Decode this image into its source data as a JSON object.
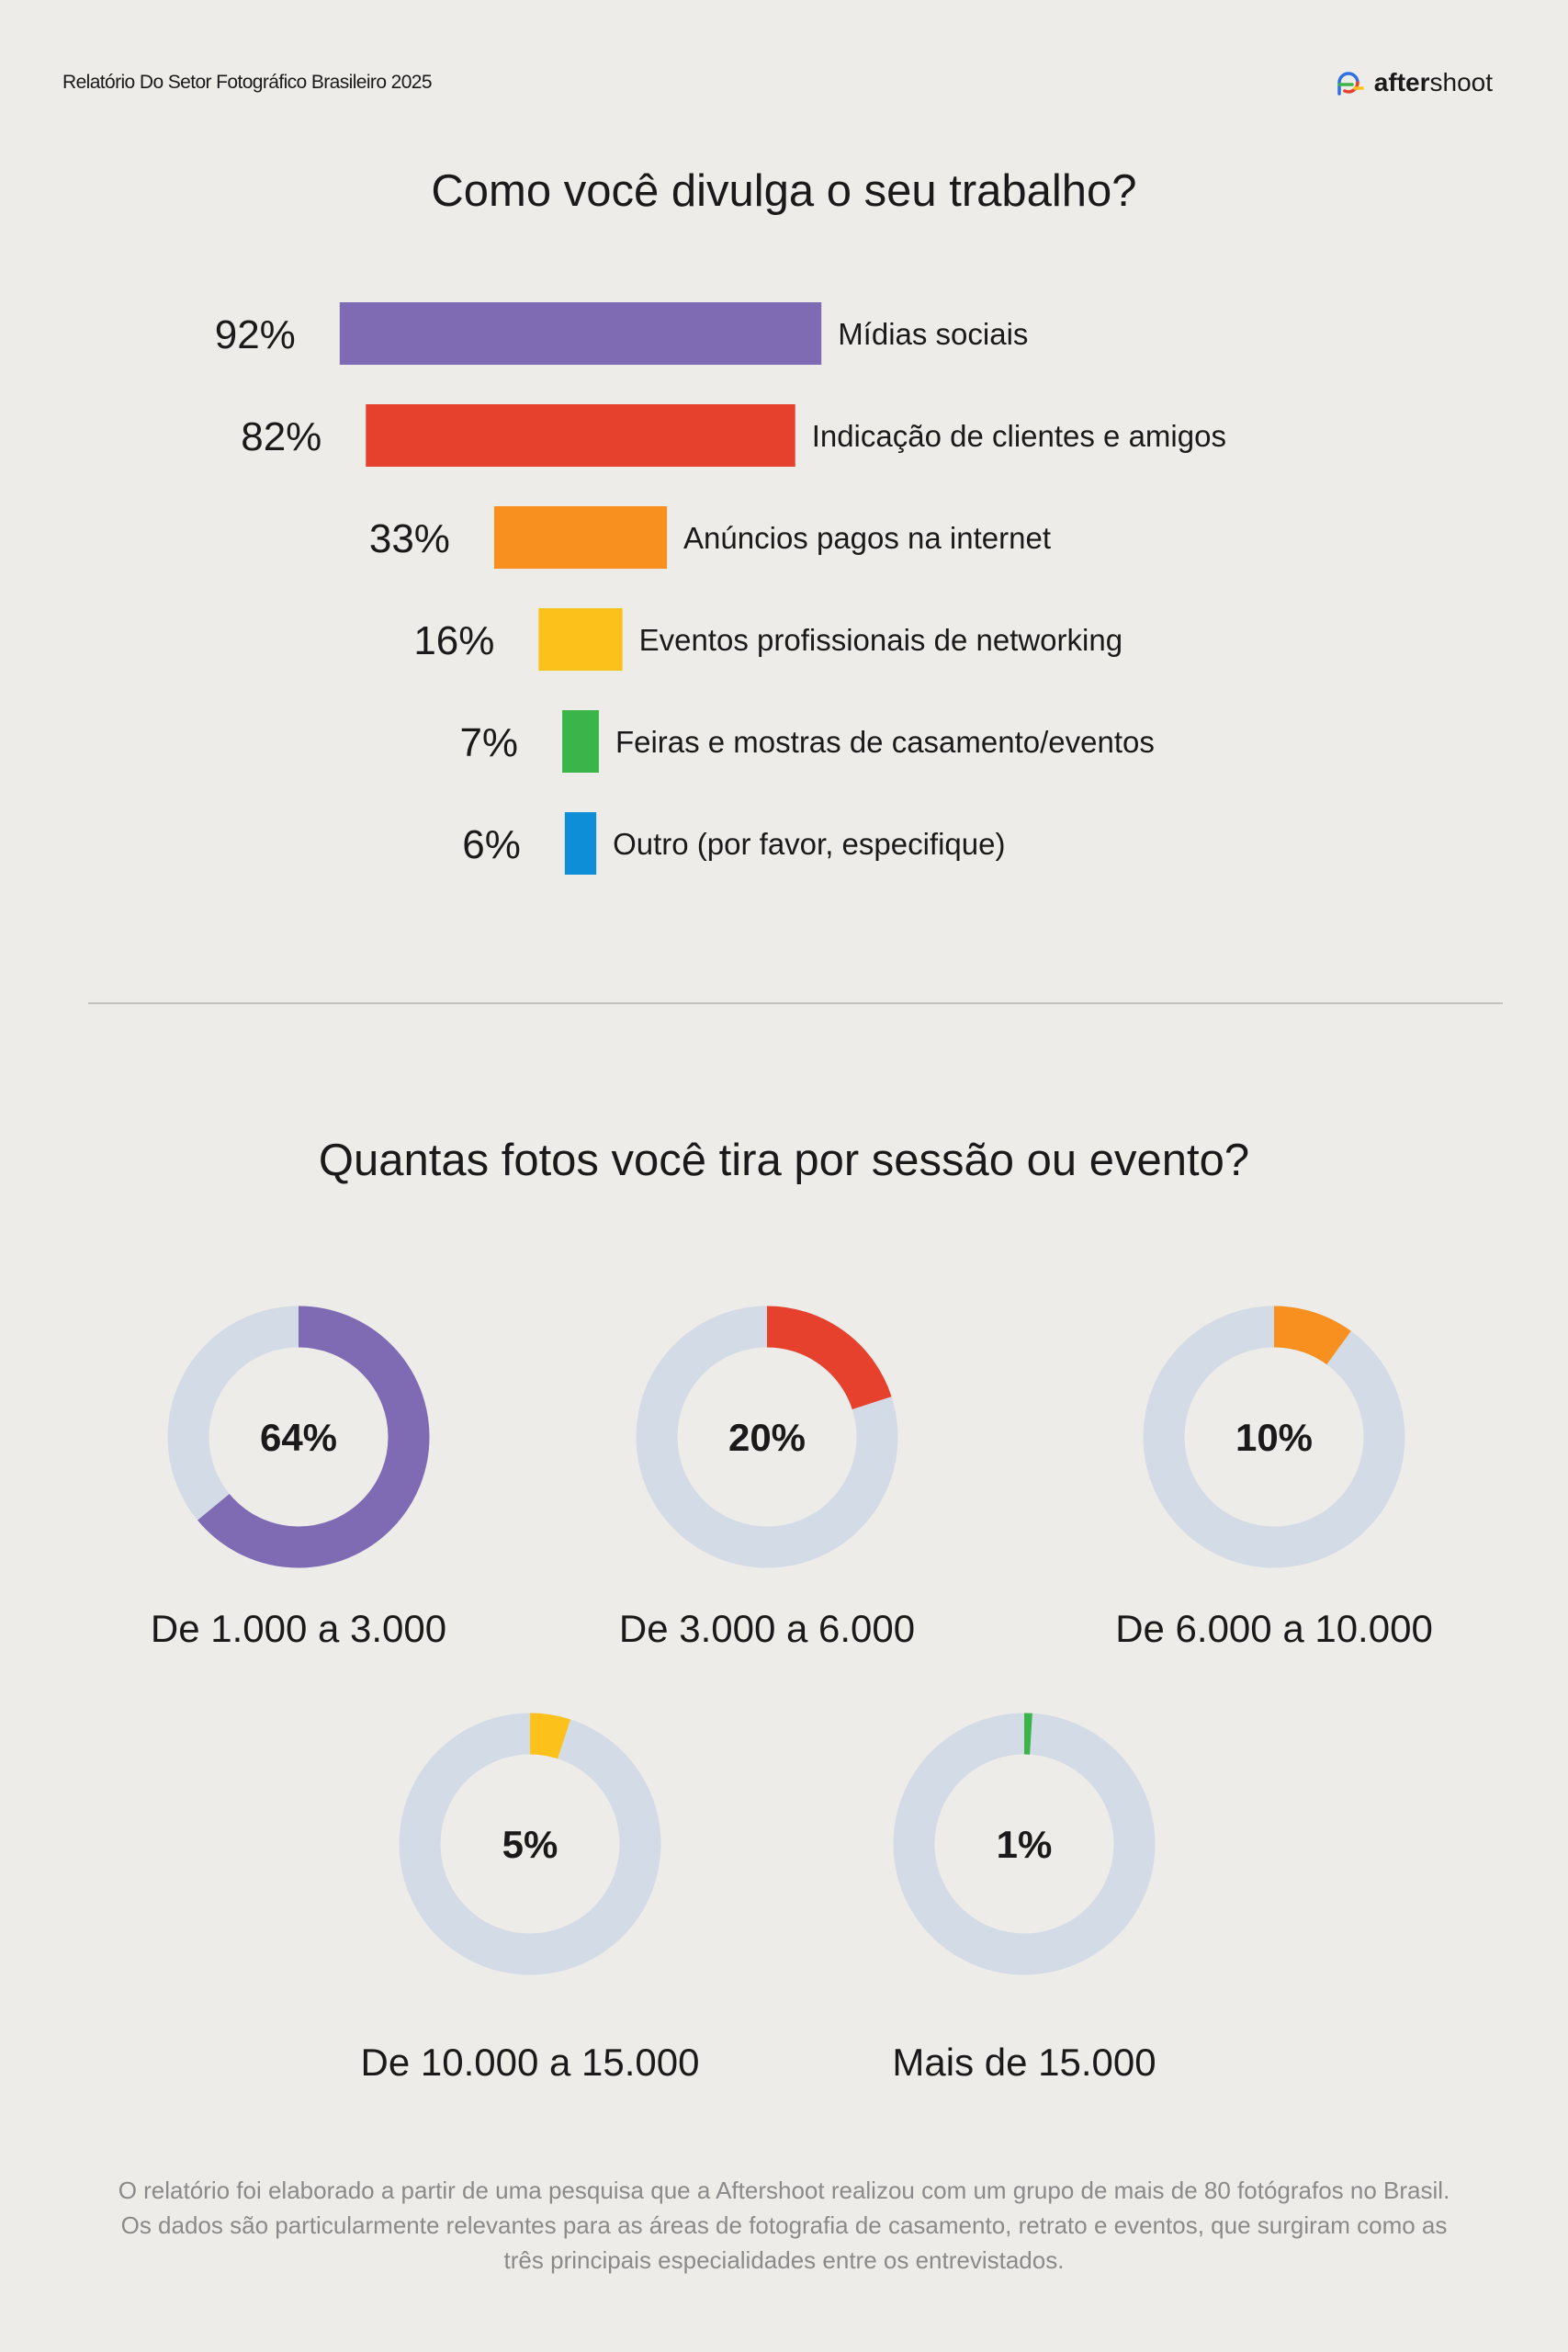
{
  "header": {
    "report_title": "Relatório Do Setor Fotográfico Brasileiro 2025",
    "brand_name_bold": "after",
    "brand_name_regular": "shoot",
    "brand_logo_icon": "aftershoot-logo-icon"
  },
  "chart_data": [
    {
      "type": "bar",
      "orientation": "horizontal",
      "title": "Como você divulga o seu trabalho?",
      "categories": [
        "Mídias sociais",
        "Indicação de clientes e amigos",
        "Anúncios pagos na internet",
        "Eventos profissionais de networking",
        "Feiras e mostras de casamento/eventos",
        "Outro (por favor, especifique)"
      ],
      "values": [
        92,
        82,
        33,
        16,
        7,
        6
      ],
      "value_labels": [
        "92%",
        "82%",
        "33%",
        "16%",
        "7%",
        "6%"
      ],
      "colors": [
        "#7e6bb3",
        "#e6412d",
        "#f7901e",
        "#fcc21b",
        "#3bb54a",
        "#0d8ed6"
      ],
      "xlim": [
        0,
        100
      ],
      "grid": false,
      "legend": "none"
    },
    {
      "type": "pie",
      "variant": "donut",
      "title": "Quantas fotos você tira por sessão ou evento?",
      "categories": [
        "De 1.000 a 3.000",
        "De 3.000 a 6.000",
        "De 6.000 a 10.000",
        "De 10.000 a 15.000",
        "Mais de 15.000"
      ],
      "values": [
        64,
        20,
        10,
        5,
        1
      ],
      "value_labels": [
        "64%",
        "20%",
        "10%",
        "5%",
        "1%"
      ],
      "colors": [
        "#7e6bb3",
        "#e6412d",
        "#f7901e",
        "#fcc21b",
        "#3bb54a"
      ],
      "track_color": "#d3dbe6",
      "legend": "none"
    }
  ],
  "footnote": "O relatório foi elaborado a partir de uma pesquisa que a Aftershoot realizou com um grupo de mais de 80 fotógrafos no Brasil. Os dados são particularmente relevantes para as áreas de fotografia de casamento, retrato e eventos, que surgiram como as três principais especialidades entre os entrevistados."
}
